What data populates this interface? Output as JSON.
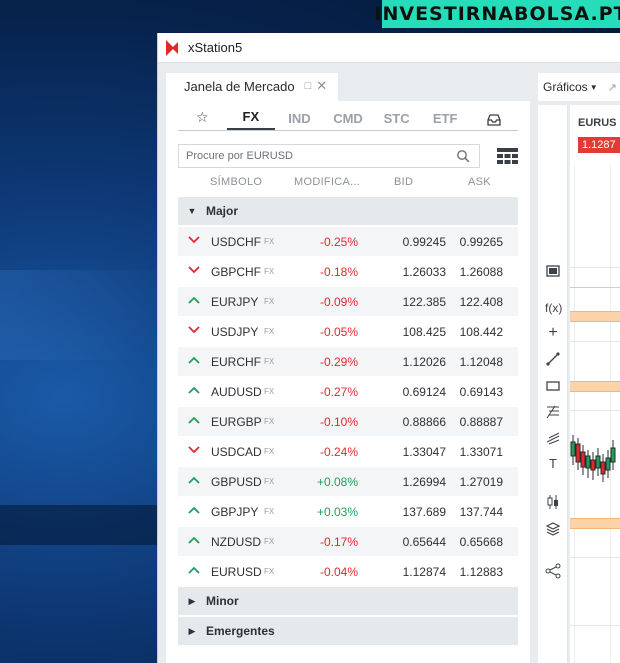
{
  "watermark": "INVESTIRNABOLSA.PT",
  "window": {
    "title": "xStation5"
  },
  "market_panel": {
    "title": "Janela de Mercado",
    "filters": [
      "FX",
      "IND",
      "CMD",
      "STC",
      "ETF"
    ],
    "active_filter": "FX",
    "search_placeholder": "Procure por EURUSD",
    "columns": {
      "symbol": "SÍMBOLO",
      "change": "MODIFICA...",
      "bid": "BID",
      "ask": "ASK"
    },
    "groups": {
      "major": "Major",
      "minor": "Minor",
      "emerging": "Emergentes"
    },
    "rows": [
      {
        "symbol": "USDCHF",
        "badge": "FX",
        "direction": "down",
        "change": "-0.25%",
        "bid": "0.99245",
        "ask": "0.99265"
      },
      {
        "symbol": "GBPCHF",
        "badge": "FX",
        "direction": "down",
        "change": "-0.18%",
        "bid": "1.26033",
        "ask": "1.26088"
      },
      {
        "symbol": "EURJPY",
        "badge": "FX",
        "direction": "up",
        "change": "-0.09%",
        "bid": "122.385",
        "ask": "122.408"
      },
      {
        "symbol": "USDJPY",
        "badge": "FX",
        "direction": "down",
        "change": "-0.05%",
        "bid": "108.425",
        "ask": "108.442"
      },
      {
        "symbol": "EURCHF",
        "badge": "FX",
        "direction": "up",
        "change": "-0.29%",
        "bid": "1.12026",
        "ask": "1.12048"
      },
      {
        "symbol": "AUDUSD",
        "badge": "FX",
        "direction": "up",
        "change": "-0.27%",
        "bid": "0.69124",
        "ask": "0.69143"
      },
      {
        "symbol": "EURGBP",
        "badge": "FX",
        "direction": "up",
        "change": "-0.10%",
        "bid": "0.88866",
        "ask": "0.88887"
      },
      {
        "symbol": "USDCAD",
        "badge": "FX",
        "direction": "down",
        "change": "-0.24%",
        "bid": "1.33047",
        "ask": "1.33071"
      },
      {
        "symbol": "GBPUSD",
        "badge": "FX",
        "direction": "up",
        "change": "+0.08%",
        "bid": "1.26994",
        "ask": "1.27019"
      },
      {
        "symbol": "GBPJPY",
        "badge": "FX",
        "direction": "up",
        "change": "+0.03%",
        "bid": "137.689",
        "ask": "137.744"
      },
      {
        "symbol": "NZDUSD",
        "badge": "FX",
        "direction": "up",
        "change": "-0.17%",
        "bid": "0.65644",
        "ask": "0.65668"
      },
      {
        "symbol": "EURUSD",
        "badge": "FX",
        "direction": "up",
        "change": "-0.04%",
        "bid": "1.12874",
        "ask": "1.12883"
      }
    ]
  },
  "charts_panel": {
    "title": "Gráficos",
    "symbol": "EURUS",
    "price": "1.1287",
    "tools": [
      "indicator-box-icon",
      "fx-icon",
      "crosshair-icon",
      "trendline-icon",
      "rectangle-icon",
      "fibonacci-icon",
      "pitchfork-icon",
      "text-icon",
      "candles-icon",
      "layers-icon",
      "share-icon"
    ]
  },
  "colors": {
    "down": "#e2282d",
    "up": "#1d9e5c",
    "watermark_bg": "#27dcb8"
  }
}
